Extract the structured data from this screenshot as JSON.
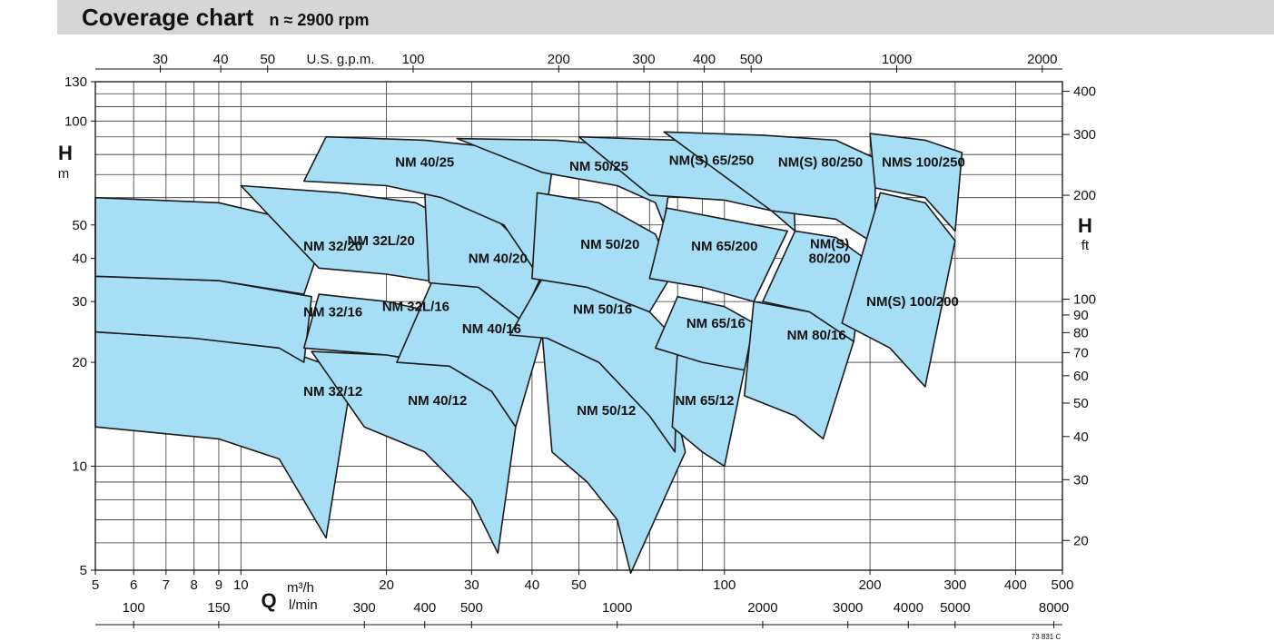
{
  "header": {
    "title": "Coverage chart",
    "subtitle": "n ≈ 2900 rpm"
  },
  "chart_data": {
    "type": "area",
    "title": "Coverage chart",
    "subtitle": "n ≈ 2900 rpm",
    "x_scale": "log",
    "y_scale": "log",
    "xlim": [
      5,
      500
    ],
    "ylim": [
      5,
      130
    ],
    "x_axis": {
      "unit_symbol": "Q",
      "unit_m3h": "m³/h",
      "unit_lmin": "l/min",
      "ticks": [
        5,
        6,
        7,
        8,
        9,
        10,
        20,
        30,
        40,
        50,
        100,
        200,
        300,
        400,
        500
      ],
      "tick_labels": [
        "5",
        "6",
        "7",
        "8",
        "9",
        "10",
        "20",
        "30",
        "40",
        "50",
        "100",
        "200",
        "300",
        "400",
        "500"
      ],
      "lmin_ticks": [
        100,
        150,
        300,
        400,
        500,
        1000,
        2000,
        3000,
        4000,
        5000,
        8000
      ],
      "lmin_labels": [
        "100",
        "150",
        "300",
        "400",
        "500",
        "1000",
        "2000",
        "3000",
        "4000",
        "5000",
        "8000"
      ]
    },
    "x_axis_top": {
      "label": "U.S. g.p.m.",
      "ticks": [
        30,
        40,
        50,
        100,
        200,
        300,
        400,
        500,
        1000,
        2000
      ],
      "tick_labels": [
        "30",
        "40",
        "50",
        "100",
        "200",
        "300",
        "400",
        "500",
        "1000",
        "2000"
      ]
    },
    "y_axis": {
      "label": "H",
      "unit": "m",
      "ticks": [
        5,
        10,
        20,
        30,
        40,
        50,
        100,
        130
      ],
      "tick_labels": [
        "5",
        "10",
        "20",
        "30",
        "40",
        "50",
        "100",
        "130"
      ]
    },
    "y_axis_right": {
      "label": "H",
      "unit": "ft",
      "ticks": [
        20,
        30,
        40,
        50,
        60,
        70,
        80,
        90,
        100,
        200,
        300,
        400
      ],
      "tick_labels": [
        "20",
        "30",
        "40",
        "50",
        "60",
        "70",
        "80",
        "90",
        "100",
        "200",
        "300",
        "400"
      ]
    },
    "grid": true,
    "fill_color": "#a6def6",
    "line_color": "#1a1a1a",
    "regions": [
      {
        "label": "NM 32/12",
        "label_pos": [
          15.5,
          16.5
        ],
        "top": [
          [
            5,
            24.5
          ],
          [
            8,
            23.5
          ],
          [
            12,
            22
          ],
          [
            17,
            18.5
          ]
        ],
        "bottom": [
          [
            5,
            13
          ],
          [
            9,
            12
          ],
          [
            12,
            10.5
          ],
          [
            15,
            6.2
          ]
        ]
      },
      {
        "label": "NM 32/16",
        "label_pos": [
          15.5,
          28
        ],
        "top": [
          [
            5,
            35.5
          ],
          [
            9,
            34.5
          ],
          [
            14,
            31
          ]
        ],
        "bottom": [
          [
            5,
            24.5
          ],
          [
            8,
            23.5
          ],
          [
            12,
            22
          ],
          [
            13.5,
            20
          ]
        ]
      },
      {
        "label": "NM 32/20",
        "label_pos": [
          15.5,
          43.5
        ],
        "top": [
          [
            5,
            60
          ],
          [
            9,
            58
          ],
          [
            15,
            49
          ]
        ],
        "bottom": [
          [
            5,
            35.5
          ],
          [
            9,
            34.5
          ],
          [
            13.5,
            31.5
          ]
        ]
      },
      {
        "label": "NM 32L/16",
        "label_pos": [
          23,
          29
        ],
        "top": [
          [
            14.5,
            31.5
          ],
          [
            20,
            30
          ],
          [
            25,
            28
          ],
          [
            30,
            24
          ]
        ],
        "bottom": [
          [
            13.5,
            22
          ],
          [
            20,
            21
          ],
          [
            25,
            20
          ],
          [
            24,
            20
          ]
        ]
      },
      {
        "label": "NM 32L/20",
        "label_pos": [
          19.5,
          45
        ],
        "top": [
          [
            10,
            65
          ],
          [
            16,
            62
          ],
          [
            23,
            58
          ],
          [
            26,
            53
          ]
        ],
        "bottom": [
          [
            14.5,
            37.5
          ],
          [
            20,
            36
          ],
          [
            26,
            34
          ]
        ]
      },
      {
        "label": "NM 40/12",
        "label_pos": [
          25.5,
          15.5
        ],
        "top": [
          [
            14,
            21.5
          ],
          [
            20,
            21
          ],
          [
            27,
            19.5
          ],
          [
            33,
            16.5
          ],
          [
            37,
            13
          ]
        ],
        "bottom": [
          [
            18,
            13
          ],
          [
            24,
            11
          ],
          [
            30,
            8
          ],
          [
            34,
            5.6
          ]
        ]
      },
      {
        "label": "NM 40/16",
        "label_pos": [
          33,
          25
        ],
        "top": [
          [
            25,
            35
          ],
          [
            31,
            33
          ],
          [
            38,
            26.5
          ],
          [
            42,
            24
          ]
        ],
        "bottom": [
          [
            21,
            20
          ],
          [
            27,
            19.5
          ],
          [
            33,
            16.5
          ],
          [
            37,
            13
          ]
        ]
      },
      {
        "label": "NM 40/20",
        "label_pos": [
          34,
          40
        ],
        "top": [
          [
            24,
            62
          ],
          [
            32,
            56
          ],
          [
            38,
            44
          ],
          [
            42,
            36
          ]
        ],
        "bottom": [
          [
            24.5,
            34
          ],
          [
            31,
            33
          ],
          [
            38,
            26.5
          ]
        ]
      },
      {
        "label": "NM 40/25",
        "label_pos": [
          24,
          76
        ],
        "top": [
          [
            15,
            90
          ],
          [
            24,
            88
          ],
          [
            33,
            84
          ],
          [
            44,
            72
          ]
        ],
        "bottom": [
          [
            13.5,
            67
          ],
          [
            20,
            65
          ],
          [
            26,
            60
          ],
          [
            35,
            50
          ],
          [
            41,
            36
          ]
        ]
      },
      {
        "label": "NM 50/12",
        "label_pos": [
          57,
          14.5
        ],
        "top": [
          [
            42,
            24
          ],
          [
            50,
            22.5
          ],
          [
            65,
            19
          ],
          [
            79,
            15
          ],
          [
            83,
            11
          ]
        ],
        "bottom": [
          [
            44,
            11
          ],
          [
            52,
            9
          ],
          [
            60,
            7
          ],
          [
            64,
            4.9
          ]
        ]
      },
      {
        "label": "NM 50/16",
        "label_pos": [
          56,
          28.5
        ],
        "top": [
          [
            42,
            35
          ],
          [
            55,
            33
          ],
          [
            70,
            28
          ],
          [
            80,
            23
          ]
        ],
        "bottom": [
          [
            36,
            24
          ],
          [
            43,
            23.5
          ],
          [
            55,
            20
          ],
          [
            70,
            14
          ],
          [
            79,
            11
          ]
        ]
      },
      {
        "label": "NM 50/20",
        "label_pos": [
          58,
          44
        ],
        "top": [
          [
            41,
            62
          ],
          [
            55,
            58
          ],
          [
            72,
            47
          ],
          [
            78,
            36
          ]
        ],
        "bottom": [
          [
            40,
            35
          ],
          [
            52,
            33
          ],
          [
            70,
            28
          ]
        ]
      },
      {
        "label": "NM 50/25",
        "label_pos": [
          55,
          74
        ],
        "top": [
          [
            28,
            89
          ],
          [
            45,
            88
          ],
          [
            65,
            84
          ],
          [
            78,
            72
          ]
        ],
        "bottom": [
          [
            42,
            71
          ],
          [
            60,
            65
          ],
          [
            72,
            58
          ],
          [
            75,
            50
          ],
          [
            73,
            40
          ]
        ]
      },
      {
        "label": "NM 65/12",
        "label_pos": [
          91,
          15.5
        ],
        "top": [
          [
            80,
            21.5
          ],
          [
            95,
            20.5
          ],
          [
            110,
            19
          ]
        ],
        "bottom": [
          [
            78,
            13
          ],
          [
            90,
            11
          ],
          [
            100,
            10
          ]
        ]
      },
      {
        "label": "NM 65/16",
        "label_pos": [
          96,
          26
        ],
        "top": [
          [
            80,
            31
          ],
          [
            100,
            29
          ],
          [
            115,
            26
          ]
        ],
        "bottom": [
          [
            72,
            22
          ],
          [
            90,
            20
          ],
          [
            110,
            19
          ]
        ]
      },
      {
        "label": "NM 65/200",
        "label_pos": [
          100,
          43.5
        ],
        "top": [
          [
            76,
            56
          ],
          [
            100,
            52
          ],
          [
            135,
            48
          ]
        ],
        "bottom": [
          [
            70,
            35
          ],
          [
            90,
            33
          ],
          [
            115,
            30
          ]
        ]
      },
      {
        "label": "NM(S) 65/250",
        "label_pos": [
          94,
          77
        ],
        "top": [
          [
            50,
            90
          ],
          [
            80,
            88
          ],
          [
            110,
            85
          ],
          [
            138,
            79
          ]
        ],
        "bottom": [
          [
            70,
            61
          ],
          [
            100,
            59
          ],
          [
            125,
            55
          ],
          [
            140,
            48
          ]
        ]
      },
      {
        "label": "NM 80/16",
        "label_pos": [
          155,
          24
        ],
        "top": [
          [
            115,
            30
          ],
          [
            150,
            28
          ],
          [
            185,
            23
          ]
        ],
        "bottom": [
          [
            110,
            16
          ],
          [
            140,
            14
          ],
          [
            160,
            12
          ]
        ]
      },
      {
        "label": "NM(S)\n80/200",
        "label_pos": [
          165,
          42
        ],
        "top": [
          [
            140,
            48
          ],
          [
            170,
            46
          ],
          [
            195,
            40
          ]
        ],
        "bottom": [
          [
            120,
            30
          ],
          [
            150,
            28
          ],
          [
            185,
            23
          ]
        ]
      },
      {
        "label": "NM(S) 80/250",
        "label_pos": [
          158,
          76
        ],
        "top": [
          [
            75,
            93
          ],
          [
            120,
            91
          ],
          [
            170,
            88
          ],
          [
            205,
            78
          ]
        ],
        "bottom": [
          [
            125,
            55
          ],
          [
            170,
            52
          ],
          [
            205,
            44
          ]
        ]
      },
      {
        "label": "NM(S) 100/200",
        "label_pos": [
          245,
          30
        ],
        "top": [
          [
            210,
            62
          ],
          [
            260,
            58
          ],
          [
            300,
            45
          ]
        ],
        "bottom": [
          [
            175,
            26
          ],
          [
            220,
            22
          ],
          [
            260,
            17
          ]
        ]
      },
      {
        "label": "NMS 100/250",
        "label_pos": [
          258,
          76
        ],
        "top": [
          [
            200,
            92
          ],
          [
            260,
            88
          ],
          [
            310,
            81
          ]
        ],
        "bottom": [
          [
            205,
            64
          ],
          [
            260,
            60
          ],
          [
            300,
            48
          ]
        ]
      }
    ],
    "annotation": "73 831 C"
  }
}
